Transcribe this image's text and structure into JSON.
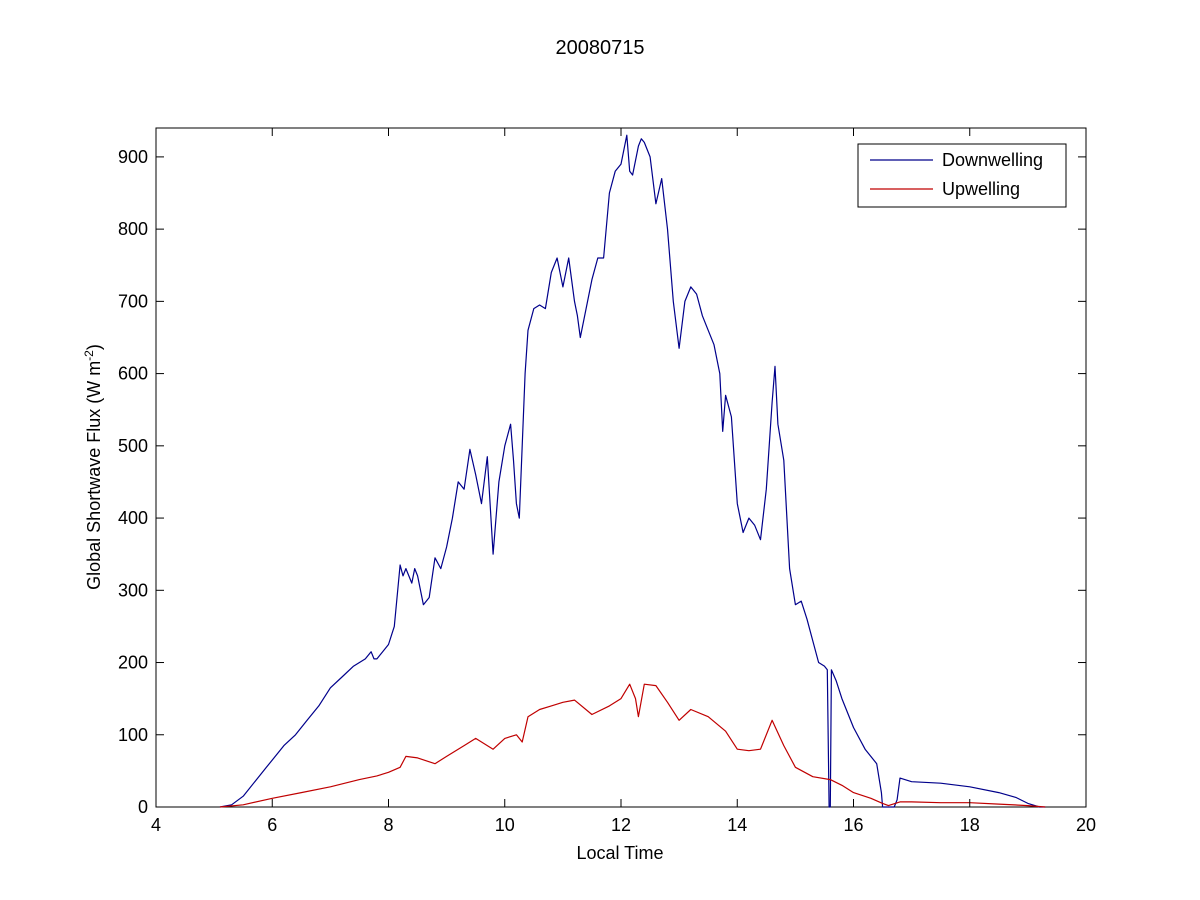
{
  "chart_data": {
    "type": "line",
    "title": "20080715",
    "xlabel": "Local Time",
    "ylabel": {
      "prefix": "Global Shortwave Flux (W m",
      "sup": "-2",
      "suffix": ")"
    },
    "xlim": [
      4,
      20
    ],
    "ylim": [
      0,
      940
    ],
    "xticks": [
      4,
      6,
      8,
      10,
      12,
      14,
      16,
      18,
      20
    ],
    "yticks": [
      0,
      100,
      200,
      300,
      400,
      500,
      600,
      700,
      800,
      900
    ],
    "grid": false,
    "legend_position": "top-right",
    "series": [
      {
        "name": "Downwelling",
        "color": "#00008b",
        "x": [
          5.1,
          5.3,
          5.5,
          5.7,
          5.9,
          6.0,
          6.2,
          6.4,
          6.6,
          6.8,
          7.0,
          7.2,
          7.4,
          7.6,
          7.7,
          7.75,
          7.8,
          8.0,
          8.1,
          8.2,
          8.25,
          8.3,
          8.4,
          8.45,
          8.5,
          8.6,
          8.7,
          8.8,
          8.9,
          9.0,
          9.1,
          9.2,
          9.3,
          9.4,
          9.5,
          9.6,
          9.7,
          9.8,
          9.9,
          10.0,
          10.1,
          10.15,
          10.2,
          10.25,
          10.3,
          10.35,
          10.4,
          10.5,
          10.6,
          10.7,
          10.8,
          10.9,
          11.0,
          11.1,
          11.2,
          11.25,
          11.3,
          11.4,
          11.5,
          11.6,
          11.7,
          11.8,
          11.9,
          12.0,
          12.1,
          12.15,
          12.2,
          12.3,
          12.35,
          12.4,
          12.5,
          12.6,
          12.7,
          12.8,
          12.9,
          13.0,
          13.1,
          13.2,
          13.3,
          13.4,
          13.5,
          13.6,
          13.7,
          13.75,
          13.8,
          13.9,
          14.0,
          14.1,
          14.2,
          14.3,
          14.4,
          14.5,
          14.6,
          14.65,
          14.7,
          14.8,
          14.9,
          15.0,
          15.1,
          15.2,
          15.3,
          15.4,
          15.5,
          15.55,
          15.58,
          15.6,
          15.62,
          15.7,
          15.8,
          16.0,
          16.2,
          16.4,
          16.48,
          16.5,
          16.6,
          16.7,
          16.75,
          16.8,
          17.0,
          17.5,
          18.0,
          18.5,
          18.8,
          19.0,
          19.2,
          19.3
        ],
        "values": [
          0,
          3,
          15,
          35,
          55,
          65,
          85,
          100,
          120,
          140,
          165,
          180,
          195,
          205,
          215,
          205,
          205,
          225,
          250,
          335,
          320,
          330,
          310,
          330,
          320,
          280,
          290,
          345,
          330,
          360,
          400,
          450,
          440,
          495,
          460,
          420,
          485,
          350,
          450,
          500,
          530,
          480,
          420,
          400,
          500,
          600,
          660,
          690,
          695,
          690,
          740,
          760,
          720,
          760,
          700,
          680,
          650,
          690,
          730,
          760,
          760,
          850,
          880,
          890,
          930,
          880,
          875,
          915,
          925,
          920,
          900,
          835,
          870,
          800,
          700,
          635,
          700,
          720,
          710,
          680,
          660,
          640,
          600,
          520,
          570,
          540,
          420,
          380,
          400,
          390,
          370,
          440,
          560,
          610,
          530,
          480,
          330,
          280,
          285,
          260,
          230,
          200,
          195,
          190,
          0,
          0,
          190,
          175,
          150,
          110,
          80,
          60,
          20,
          0,
          0,
          0,
          10,
          40,
          35,
          33,
          28,
          20,
          13,
          5,
          0,
          0
        ]
      },
      {
        "name": "Upwelling",
        "color": "#c00000",
        "x": [
          5.1,
          5.5,
          6.0,
          6.5,
          7.0,
          7.5,
          7.8,
          8.0,
          8.2,
          8.3,
          8.5,
          8.8,
          9.0,
          9.3,
          9.5,
          9.8,
          10.0,
          10.2,
          10.3,
          10.4,
          10.6,
          10.8,
          11.0,
          11.2,
          11.5,
          11.8,
          12.0,
          12.15,
          12.25,
          12.3,
          12.4,
          12.6,
          12.8,
          13.0,
          13.2,
          13.5,
          13.8,
          14.0,
          14.2,
          14.4,
          14.6,
          14.8,
          15.0,
          15.3,
          15.6,
          15.8,
          16.0,
          16.3,
          16.5,
          16.6,
          16.8,
          17.0,
          17.5,
          18.0,
          18.5,
          19.0,
          19.3
        ],
        "values": [
          0,
          3,
          12,
          20,
          28,
          38,
          43,
          48,
          55,
          70,
          68,
          60,
          70,
          85,
          95,
          80,
          95,
          100,
          90,
          125,
          135,
          140,
          145,
          148,
          128,
          140,
          150,
          170,
          150,
          125,
          170,
          168,
          145,
          120,
          135,
          125,
          105,
          80,
          78,
          80,
          120,
          85,
          55,
          42,
          38,
          30,
          20,
          12,
          5,
          2,
          7,
          7,
          6,
          6,
          4,
          2,
          0
        ]
      }
    ]
  }
}
